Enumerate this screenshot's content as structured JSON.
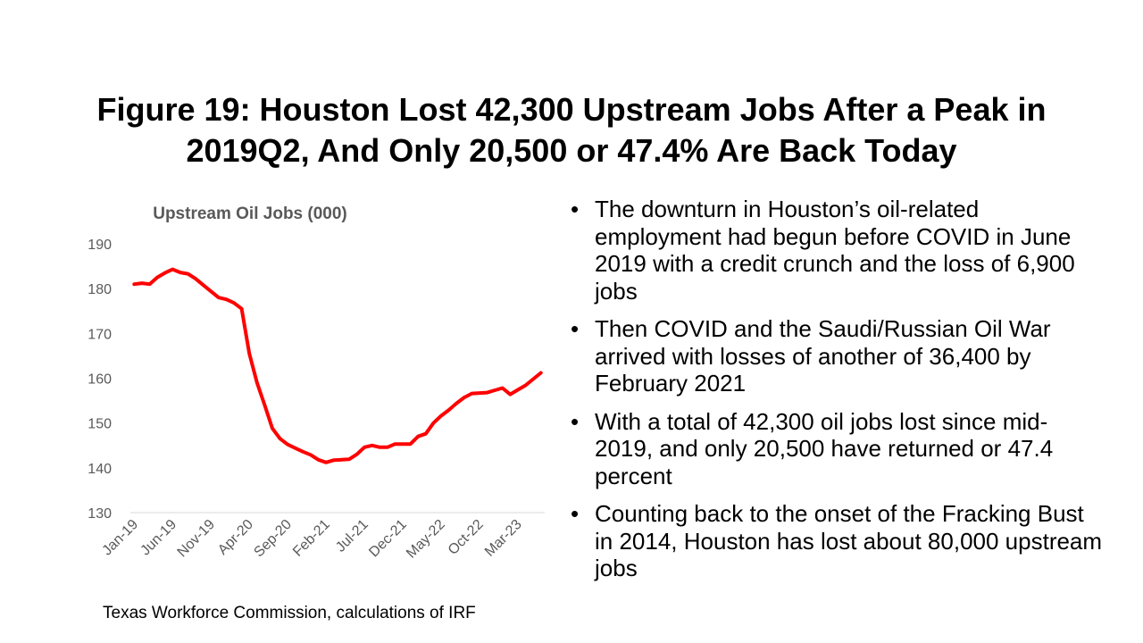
{
  "slide": {
    "title_lines": [
      "Figure 19: Houston Lost 42,300 Upstream Jobs After a Peak in",
      "2019Q2, And Only 20,500 or 47.4% Are Back Today"
    ],
    "bullets": [
      "The downturn in Houston’s oil-related employment had begun before COVID in June 2019 with a credit crunch and the loss of 6,900 jobs",
      "Then COVID and the Saudi/Russian Oil War arrived with losses of another of 36,400 by February 2021",
      "With a total of 42,300 oil jobs lost since mid-2019, and only 20,500 have returned or 47.4 percent",
      "Counting back to the onset of the Fracking Bust in 2014, Houston has lost about 80,000 upstream jobs"
    ],
    "source": "Texas Workforce Commission, calculations of IRF"
  },
  "chart_data": {
    "type": "line",
    "title": "Upstream Oil Jobs (000)",
    "xlabel": "",
    "ylabel": "",
    "ylim": [
      130,
      190
    ],
    "yticks": [
      130,
      140,
      150,
      160,
      170,
      180,
      190
    ],
    "x_tick_labels": [
      "Jan-19",
      "Jun-19",
      "Nov-19",
      "Apr-20",
      "Sep-20",
      "Feb-21",
      "Jul-21",
      "Dec-21",
      "May-22",
      "Oct-22",
      "Mar-23"
    ],
    "x_tick_every": 5,
    "grid": false,
    "legend": "none",
    "line_color": "#ff0000",
    "series": [
      {
        "values": [
          181.0,
          181.2,
          181.0,
          182.5,
          183.5,
          184.3,
          183.6,
          183.3,
          182.2,
          180.8,
          179.4,
          178.0,
          177.6,
          176.8,
          175.5,
          165.5,
          159.0,
          154.0,
          148.8,
          146.5,
          145.2,
          144.4,
          143.6,
          142.9,
          141.8,
          141.2,
          141.7,
          141.8,
          141.9,
          143.0,
          144.6,
          145.0,
          144.6,
          144.6,
          145.3,
          145.3,
          145.3,
          147.0,
          147.6,
          150.0,
          151.6,
          152.9,
          154.4,
          155.7,
          156.6,
          156.7,
          156.8,
          157.3,
          157.8,
          156.4,
          157.4,
          158.4,
          159.8,
          161.2
        ]
      }
    ]
  }
}
